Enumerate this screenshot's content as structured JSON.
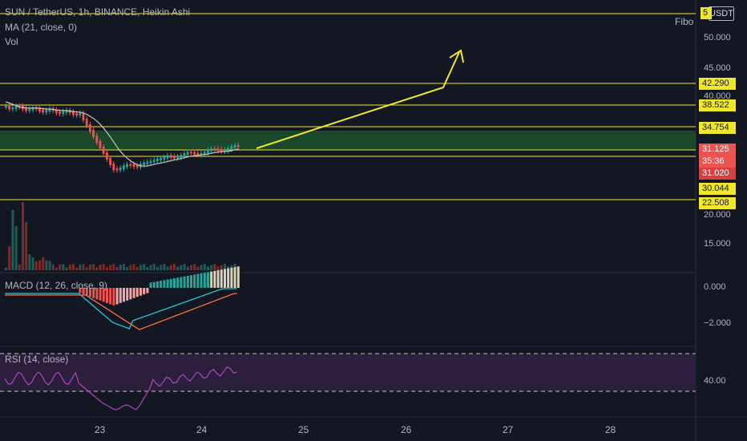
{
  "legend": {
    "title": "SUN / TetherUS, 1h, BINANCE, Heikin Ashi",
    "ma": "MA (21, close, 0)",
    "vol": "Vol",
    "macd": "MACD (12, 26, close, 9)",
    "rsi": "RSI (14, close)"
  },
  "toolbar": {
    "fibo": "Fibo",
    "currency": "USDT"
  },
  "price_axis": {
    "ticks": [
      "50.000",
      "45.000",
      "40.000",
      "20.000",
      "15.000"
    ],
    "macd_ticks": [
      "0.000",
      "−2.000"
    ],
    "rsi_ticks": [
      "40.00"
    ]
  },
  "price_tags": {
    "top": "5",
    "l42": "42.290",
    "l38": "38.522",
    "l34": "34.754",
    "current": "31.125",
    "countdown": "35:36",
    "l31": "31.020",
    "l30": "30.044",
    "l22": "22.508"
  },
  "time_axis": [
    "23",
    "24",
    "25",
    "26",
    "27",
    "28"
  ],
  "colors": {
    "background": "#131722",
    "fibo_line": "#f0e62a",
    "fibo_zone": "#1e5a2e",
    "up": "#26a69a",
    "down": "#ef5350",
    "ma": "#c8c8c8",
    "macd": "#26c6da",
    "signal": "#ff7043",
    "rsi": "#ab47bc",
    "rsi_band": "#2b1f3d"
  }
}
